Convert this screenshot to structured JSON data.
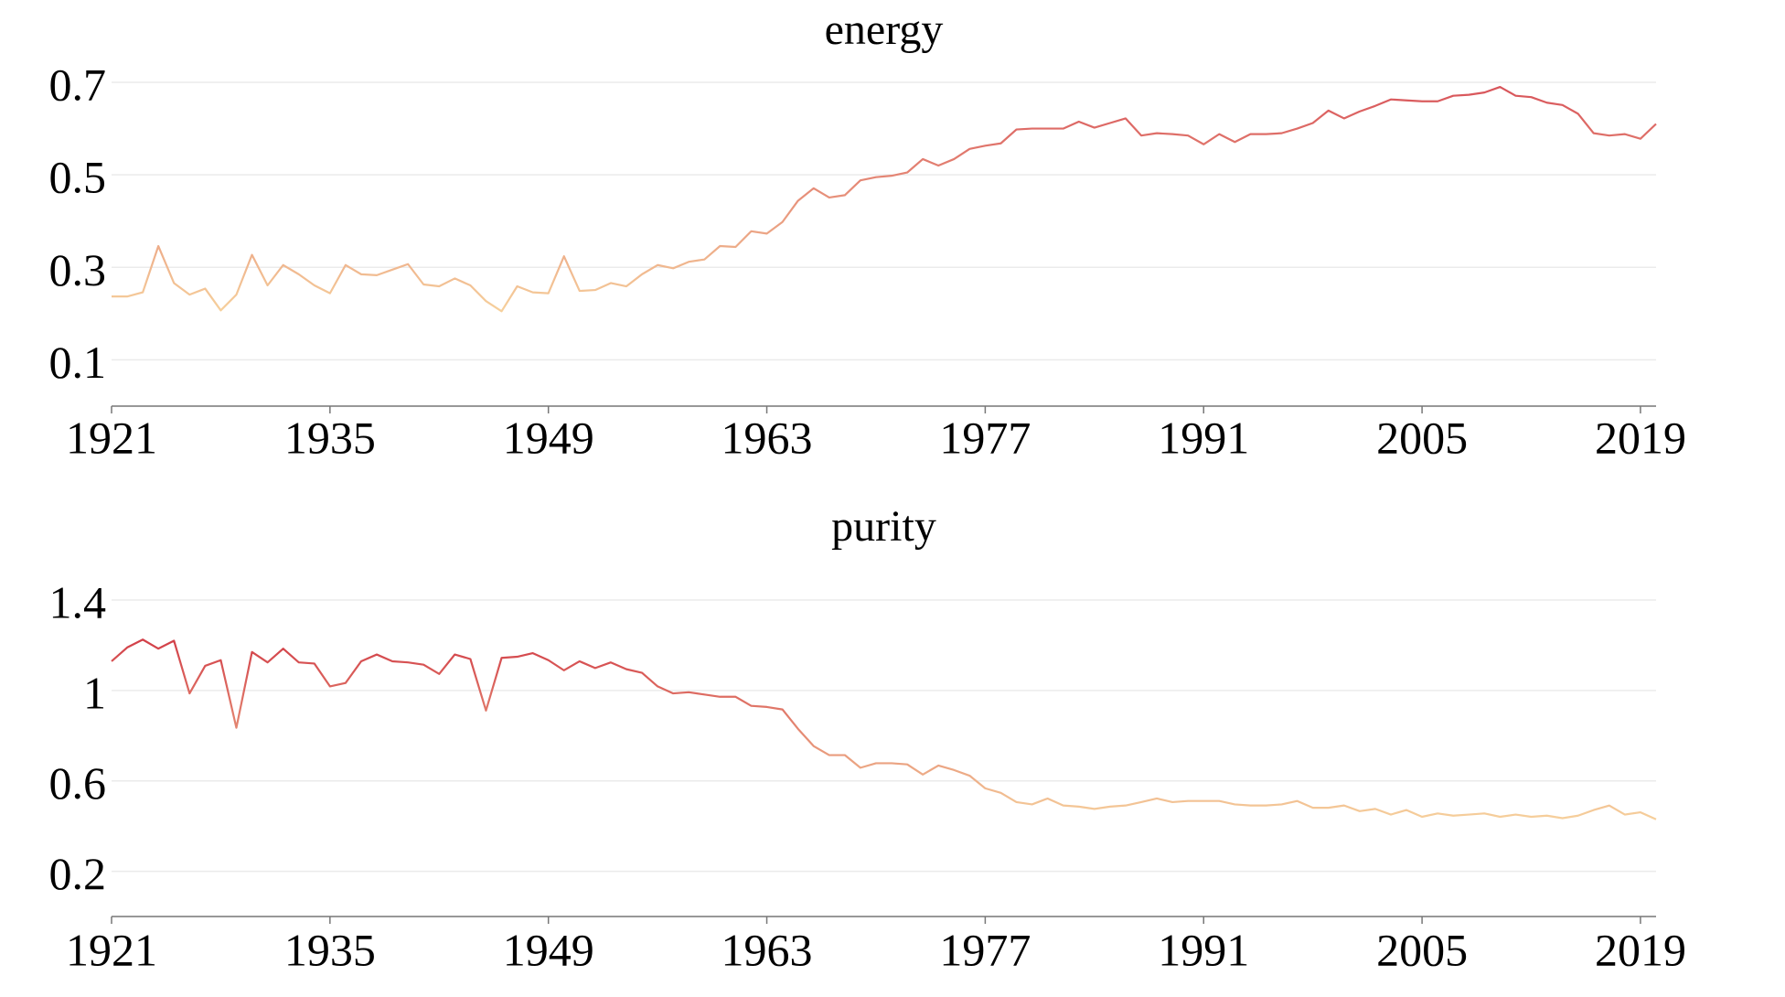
{
  "chart_data": [
    {
      "type": "line",
      "title": "energy",
      "x": [
        1921,
        1922,
        1923,
        1924,
        1925,
        1926,
        1927,
        1928,
        1929,
        1930,
        1931,
        1932,
        1933,
        1934,
        1935,
        1936,
        1937,
        1938,
        1939,
        1940,
        1941,
        1942,
        1943,
        1944,
        1945,
        1946,
        1947,
        1948,
        1949,
        1950,
        1951,
        1952,
        1953,
        1954,
        1955,
        1956,
        1957,
        1958,
        1959,
        1960,
        1961,
        1962,
        1963,
        1964,
        1965,
        1966,
        1967,
        1968,
        1969,
        1970,
        1971,
        1972,
        1973,
        1974,
        1975,
        1976,
        1977,
        1978,
        1979,
        1980,
        1981,
        1982,
        1983,
        1984,
        1985,
        1986,
        1987,
        1988,
        1989,
        1990,
        1991,
        1992,
        1993,
        1994,
        1995,
        1996,
        1997,
        1998,
        1999,
        2000,
        2001,
        2002,
        2003,
        2004,
        2005,
        2006,
        2007,
        2008,
        2009,
        2010,
        2011,
        2012,
        2013,
        2014,
        2015,
        2016,
        2017,
        2018,
        2019,
        2020
      ],
      "values": [
        0.237,
        0.237,
        0.246,
        0.346,
        0.266,
        0.241,
        0.254,
        0.207,
        0.241,
        0.327,
        0.261,
        0.305,
        0.285,
        0.261,
        0.244,
        0.305,
        0.285,
        0.283,
        0.295,
        0.307,
        0.263,
        0.259,
        0.276,
        0.261,
        0.227,
        0.205,
        0.259,
        0.246,
        0.244,
        0.324,
        0.249,
        0.251,
        0.266,
        0.259,
        0.285,
        0.305,
        0.298,
        0.312,
        0.317,
        0.346,
        0.344,
        0.378,
        0.373,
        0.398,
        0.444,
        0.471,
        0.451,
        0.456,
        0.488,
        0.495,
        0.498,
        0.505,
        0.534,
        0.52,
        0.534,
        0.556,
        0.563,
        0.568,
        0.598,
        0.6,
        0.6,
        0.6,
        0.615,
        0.602,
        0.612,
        0.622,
        0.585,
        0.59,
        0.588,
        0.585,
        0.566,
        0.588,
        0.571,
        0.588,
        0.588,
        0.59,
        0.6,
        0.612,
        0.639,
        0.622,
        0.637,
        0.649,
        0.663,
        0.661,
        0.659,
        0.659,
        0.671,
        0.673,
        0.678,
        0.69,
        0.671,
        0.668,
        0.656,
        0.651,
        0.632,
        0.59,
        0.585,
        0.588,
        0.578,
        0.61
      ],
      "color_range": [
        "#f6d09c",
        "#d8545a"
      ],
      "xlim": [
        1921,
        2020
      ],
      "xticks": [
        1921,
        1935,
        1949,
        1963,
        1977,
        1991,
        2005,
        2019
      ],
      "ylim": [
        0,
        0.7
      ],
      "yticks": [
        0.1,
        0.3,
        0.5,
        0.7
      ],
      "grid": true
    },
    {
      "type": "line",
      "title": "purity",
      "x": [
        1921,
        1922,
        1923,
        1924,
        1925,
        1926,
        1927,
        1928,
        1929,
        1930,
        1931,
        1932,
        1933,
        1934,
        1935,
        1936,
        1937,
        1938,
        1939,
        1940,
        1941,
        1942,
        1943,
        1944,
        1945,
        1946,
        1947,
        1948,
        1949,
        1950,
        1951,
        1952,
        1953,
        1954,
        1955,
        1956,
        1957,
        1958,
        1959,
        1960,
        1961,
        1962,
        1963,
        1964,
        1965,
        1966,
        1967,
        1968,
        1969,
        1970,
        1971,
        1972,
        1973,
        1974,
        1975,
        1976,
        1977,
        1978,
        1979,
        1980,
        1981,
        1982,
        1983,
        1984,
        1985,
        1986,
        1987,
        1988,
        1989,
        1990,
        1991,
        1992,
        1993,
        1994,
        1995,
        1996,
        1997,
        1998,
        1999,
        2000,
        2001,
        2002,
        2003,
        2004,
        2005,
        2006,
        2007,
        2008,
        2009,
        2010,
        2011,
        2012,
        2013,
        2014,
        2015,
        2016,
        2017,
        2018,
        2019,
        2020
      ],
      "values": [
        1.129,
        1.19,
        1.225,
        1.185,
        1.22,
        0.987,
        1.109,
        1.134,
        0.835,
        1.17,
        1.124,
        1.185,
        1.124,
        1.119,
        1.018,
        1.033,
        1.129,
        1.159,
        1.129,
        1.124,
        1.114,
        1.073,
        1.159,
        1.139,
        0.911,
        1.144,
        1.149,
        1.165,
        1.134,
        1.089,
        1.129,
        1.099,
        1.124,
        1.094,
        1.078,
        1.018,
        0.987,
        0.992,
        0.982,
        0.972,
        0.972,
        0.932,
        0.927,
        0.916,
        0.83,
        0.754,
        0.714,
        0.714,
        0.658,
        0.678,
        0.678,
        0.673,
        0.628,
        0.668,
        0.648,
        0.623,
        0.567,
        0.547,
        0.506,
        0.496,
        0.522,
        0.491,
        0.486,
        0.476,
        0.486,
        0.491,
        0.506,
        0.522,
        0.506,
        0.511,
        0.511,
        0.511,
        0.496,
        0.491,
        0.491,
        0.496,
        0.511,
        0.481,
        0.481,
        0.491,
        0.466,
        0.476,
        0.451,
        0.471,
        0.441,
        0.456,
        0.446,
        0.451,
        0.456,
        0.441,
        0.451,
        0.441,
        0.446,
        0.435,
        0.446,
        0.471,
        0.491,
        0.451,
        0.461,
        0.43
      ],
      "color_range": [
        "#f6d09c",
        "#d23f48"
      ],
      "xlim": [
        1921,
        2020
      ],
      "xticks": [
        1921,
        1935,
        1949,
        1963,
        1977,
        1991,
        2005,
        2019
      ],
      "ylim": [
        0,
        1.4
      ],
      "yticks": [
        0.2,
        0.6,
        1,
        1.4
      ],
      "grid": true
    }
  ]
}
